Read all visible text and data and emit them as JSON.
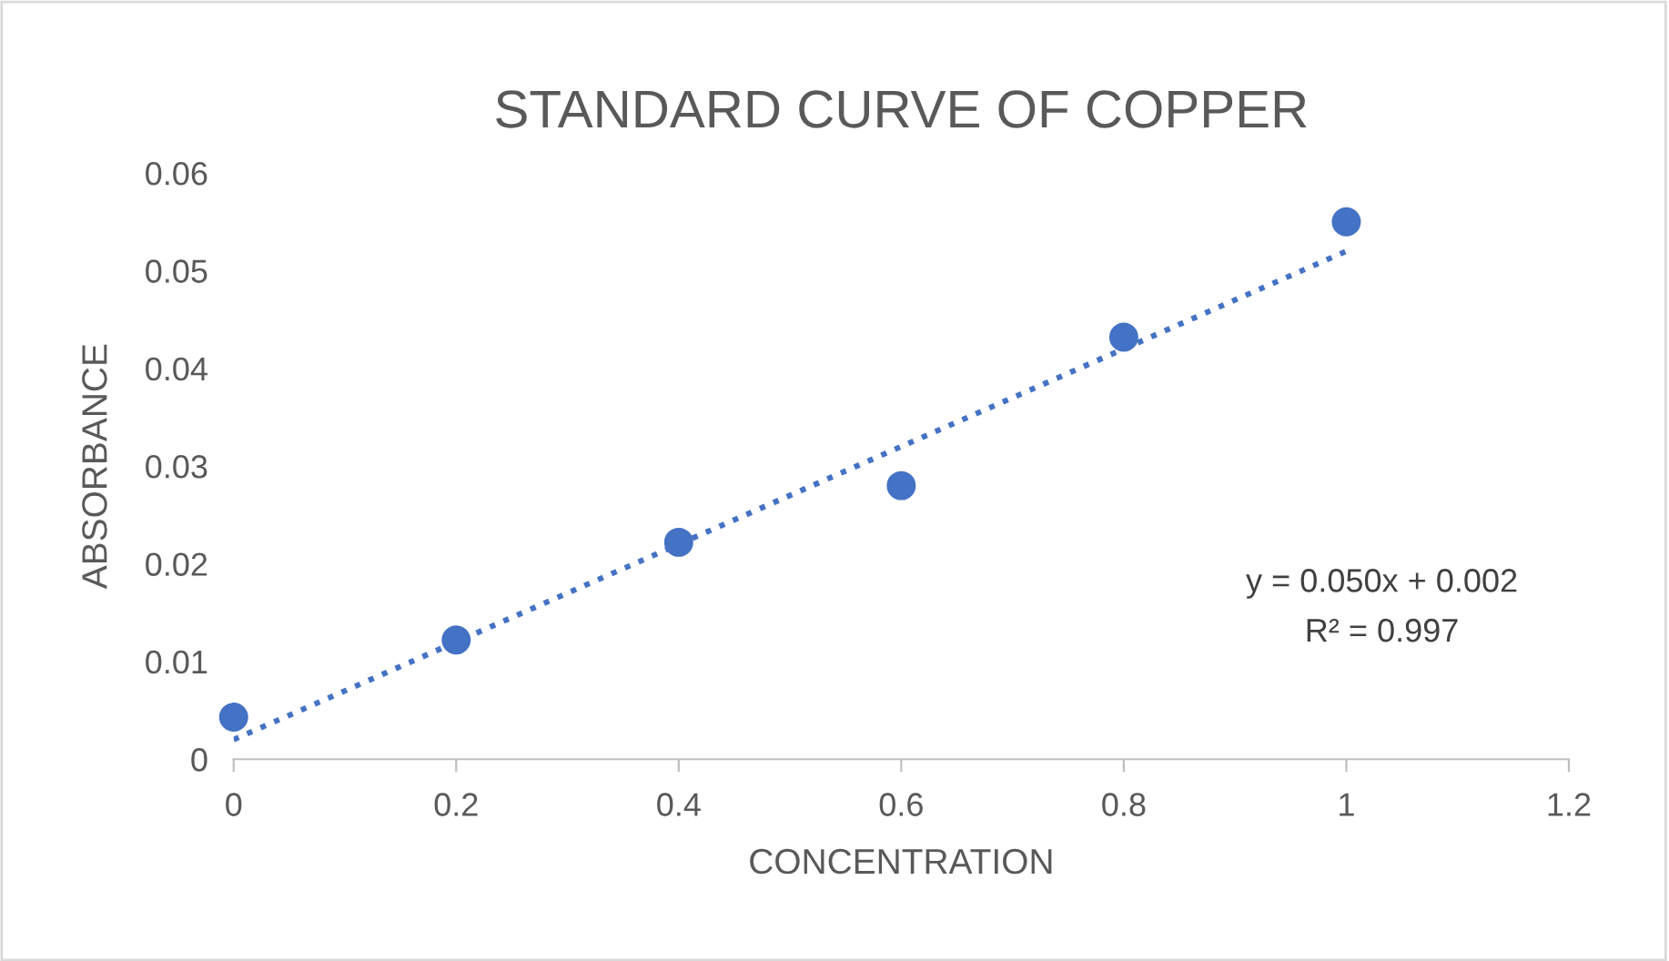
{
  "chart_data": {
    "type": "scatter",
    "title": "STANDARD CURVE OF COPPER",
    "xlabel": "CONCENTRATION",
    "ylabel": "ABSORBANCE",
    "series": [
      {
        "color": "#4472c4",
        "x": [
          0,
          0.2,
          0.4,
          0.6,
          0.8,
          1
        ],
        "values": [
          0.0043,
          0.0122,
          0.0222,
          0.028,
          0.0432,
          0.055
        ],
        "marker": "circle"
      },
      {
        "type": "line",
        "color": "#4472c4",
        "x": [
          0,
          1
        ],
        "values": [
          0.002,
          0.052
        ],
        "line_style": "dotted",
        "marker": "none"
      }
    ],
    "xlim": [
      0,
      1.2
    ],
    "xticks": [
      0,
      0.2,
      0.4,
      0.6,
      0.8,
      1,
      1.2
    ],
    "ylim": [
      0,
      0.06
    ],
    "yticks": [
      0,
      0.01,
      0.02,
      0.03,
      0.04,
      0.05,
      0.06
    ],
    "annotations": [
      "y = 0.050x + 0.002",
      "R² = 0.997"
    ],
    "grid": false,
    "legend": false
  }
}
